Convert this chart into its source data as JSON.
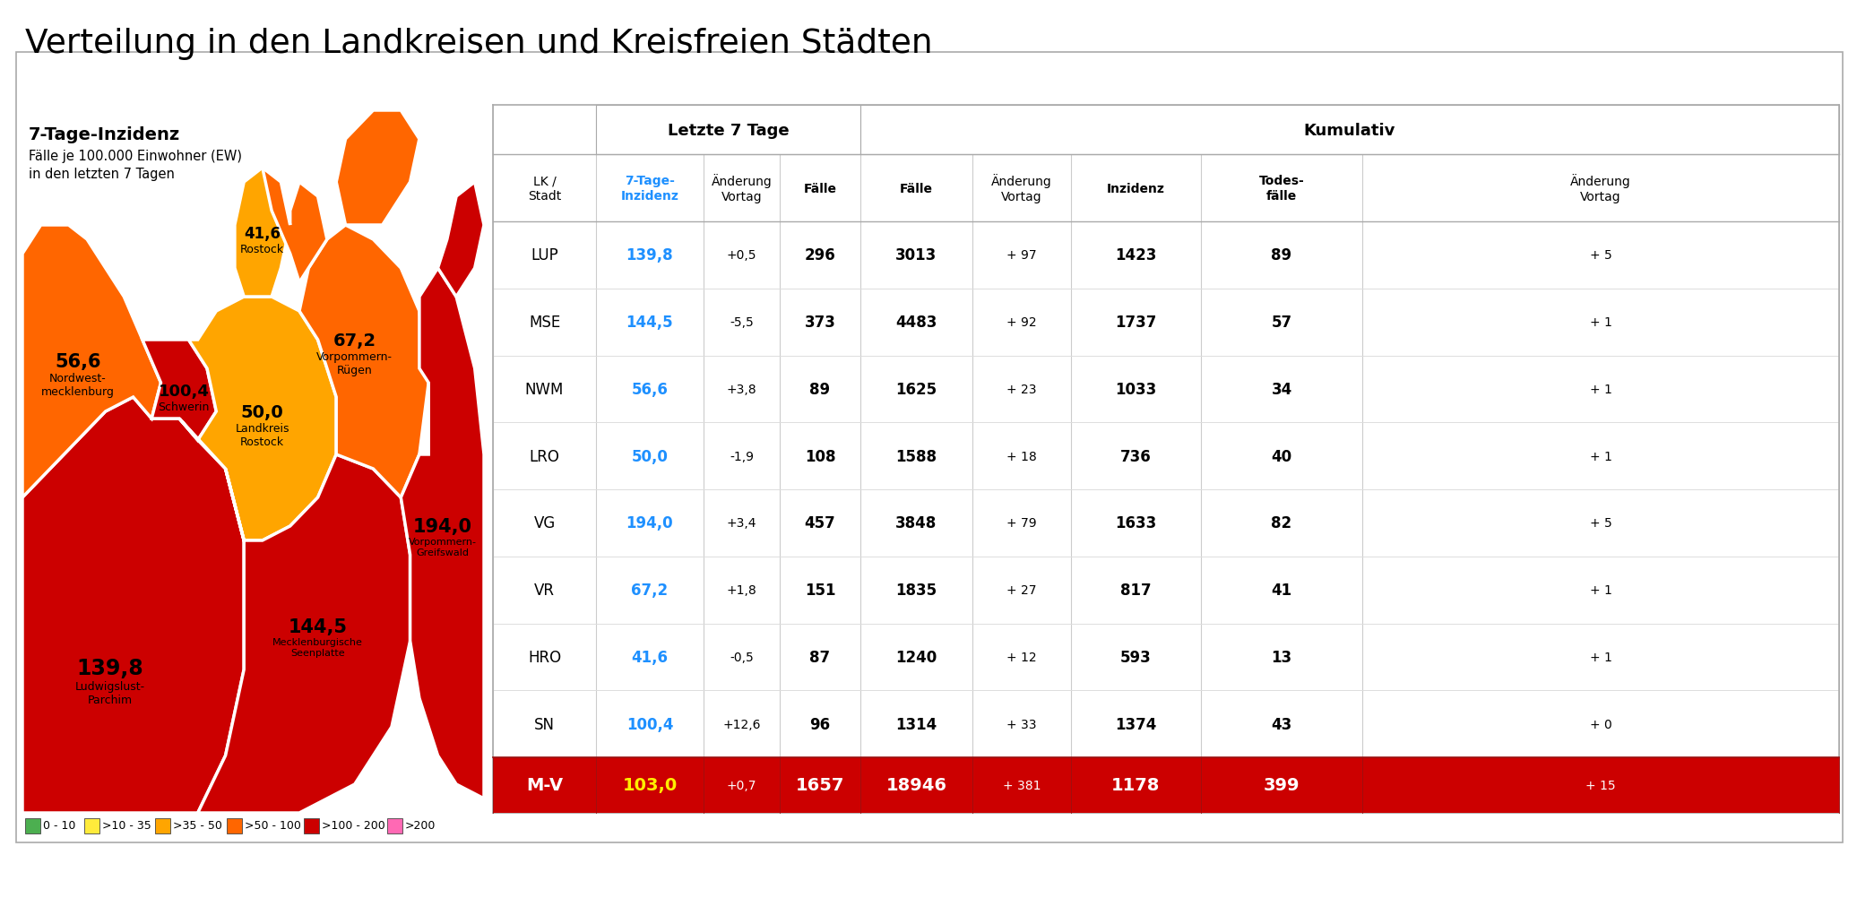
{
  "title": "Verteilung in den Landkreisen und Kreisfreien Städten",
  "legend_title": "7-Tage-Inzidenz",
  "legend_subtitle1": "Fälle je 100.000 Einwohner (EW)",
  "legend_subtitle2": "in den letzten 7 Tagen",
  "legend_items": [
    {
      "label": "0 - 10",
      "color": "#4CAF50"
    },
    {
      "label": ">10 - 35",
      "color": "#FFEB3B"
    },
    {
      "label": ">35 - 50",
      "color": "#FFA500"
    },
    {
      "label": ">50 - 100",
      "color": "#FF6600"
    },
    {
      "label": ">100 - 200",
      "color": "#CC0000"
    },
    {
      "label": ">200",
      "color": "#FF69B4"
    }
  ],
  "rows": [
    {
      "lk": "LUP",
      "inzidenz": "139,8",
      "av1": "+0,5",
      "f1": "296",
      "f2": "3013",
      "av2": "+ 97",
      "inz2": "1423",
      "tod": "89",
      "av3": "+ 5"
    },
    {
      "lk": "MSE",
      "inzidenz": "144,5",
      "av1": "-5,5",
      "f1": "373",
      "f2": "4483",
      "av2": "+ 92",
      "inz2": "1737",
      "tod": "57",
      "av3": "+ 1"
    },
    {
      "lk": "NWM",
      "inzidenz": "56,6",
      "av1": "+3,8",
      "f1": "89",
      "f2": "1625",
      "av2": "+ 23",
      "inz2": "1033",
      "tod": "34",
      "av3": "+ 1"
    },
    {
      "lk": "LRO",
      "inzidenz": "50,0",
      "av1": "-1,9",
      "f1": "108",
      "f2": "1588",
      "av2": "+ 18",
      "inz2": "736",
      "tod": "40",
      "av3": "+ 1"
    },
    {
      "lk": "VG",
      "inzidenz": "194,0",
      "av1": "+3,4",
      "f1": "457",
      "f2": "3848",
      "av2": "+ 79",
      "inz2": "1633",
      "tod": "82",
      "av3": "+ 5"
    },
    {
      "lk": "VR",
      "inzidenz": "67,2",
      "av1": "+1,8",
      "f1": "151",
      "f2": "1835",
      "av2": "+ 27",
      "inz2": "817",
      "tod": "41",
      "av3": "+ 1"
    },
    {
      "lk": "HRO",
      "inzidenz": "41,6",
      "av1": "-0,5",
      "f1": "87",
      "f2": "1240",
      "av2": "+ 12",
      "inz2": "593",
      "tod": "13",
      "av3": "+ 1"
    },
    {
      "lk": "SN",
      "inzidenz": "100,4",
      "av1": "+12,6",
      "f1": "96",
      "f2": "1314",
      "av2": "+ 33",
      "inz2": "1374",
      "tod": "43",
      "av3": "+ 0"
    }
  ],
  "total": {
    "lk": "M-V",
    "inzidenz": "103,0",
    "av1": "+0,7",
    "f1": "1657",
    "f2": "18946",
    "av2": "+ 381",
    "inz2": "1178",
    "tod": "399",
    "av3": "+ 15"
  },
  "inzidenz_color": "#1E90FF",
  "total_row_bg": "#CC0000"
}
